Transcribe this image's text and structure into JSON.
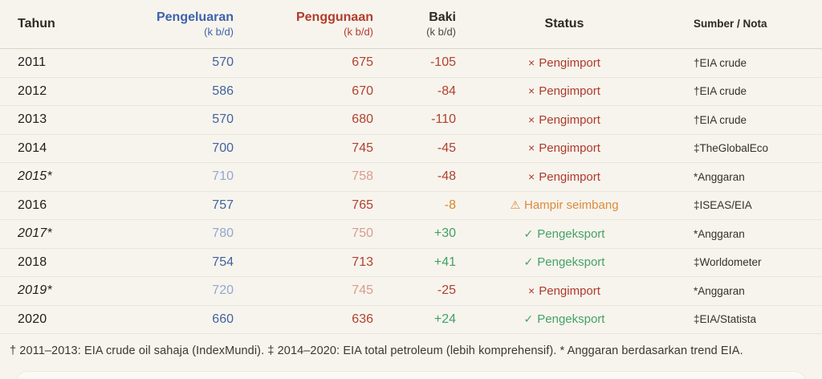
{
  "table": {
    "header": {
      "year": "Tahun",
      "production": "Pengeluaran",
      "production_unit": "(k b/d)",
      "consumption": "Penggunaan",
      "consumption_unit": "(k b/d)",
      "balance": "Baki",
      "balance_unit": "(k b/d)",
      "status": "Status",
      "source": "Sumber / Nota"
    },
    "rows": [
      {
        "year": "2011",
        "production": "570",
        "consumption": "675",
        "balance": "-105",
        "status_icon": "×",
        "status_label": "Pengimport",
        "source": "†EIA crude"
      },
      {
        "year": "2012",
        "production": "586",
        "consumption": "670",
        "balance": "-84",
        "status_icon": "×",
        "status_label": "Pengimport",
        "source": "†EIA crude"
      },
      {
        "year": "2013",
        "production": "570",
        "consumption": "680",
        "balance": "-110",
        "status_icon": "×",
        "status_label": "Pengimport",
        "source": "†EIA crude"
      },
      {
        "year": "2014",
        "production": "700",
        "consumption": "745",
        "balance": "-45",
        "status_icon": "×",
        "status_label": "Pengimport",
        "source": "‡TheGlobalEco"
      },
      {
        "year": "2015*",
        "production": "710",
        "consumption": "758",
        "balance": "-48",
        "status_icon": "×",
        "status_label": "Pengimport",
        "source": "*Anggaran"
      },
      {
        "year": "2016",
        "production": "757",
        "consumption": "765",
        "balance": "-8",
        "status_icon": "⚠",
        "status_label": "Hampir seimbang",
        "source": "‡ISEAS/EIA"
      },
      {
        "year": "2017*",
        "production": "780",
        "consumption": "750",
        "balance": "+30",
        "status_icon": "✓",
        "status_label": "Pengeksport",
        "source": "*Anggaran"
      },
      {
        "year": "2018",
        "production": "754",
        "consumption": "713",
        "balance": "+41",
        "status_icon": "✓",
        "status_label": "Pengeksport",
        "source": "‡Worldometer"
      },
      {
        "year": "2019*",
        "production": "720",
        "consumption": "745",
        "balance": "-25",
        "status_icon": "×",
        "status_label": "Pengimport",
        "source": "*Anggaran"
      },
      {
        "year": "2020",
        "production": "660",
        "consumption": "636",
        "balance": "+24",
        "status_icon": "✓",
        "status_label": "Pengeksport",
        "source": "‡EIA/Statista"
      }
    ]
  },
  "footnote": "† 2011–2013: EIA crude oil sahaja (IndexMundi). ‡ 2014–2020: EIA total petroleum (lebih komprehensif). * Anggaran berdasarkan trend EIA.",
  "colors": {
    "background": "#f7f4ed",
    "production_accent": "#3e62ab",
    "production_estimate": "#93a7d2",
    "consumption_accent": "#b23c2c",
    "consumption_estimate": "#d69d8e",
    "importer_red": "#ad3a2b",
    "exporter_green": "#45a268",
    "balanced_orange": "#dd8a3c",
    "row_divider": "#e9e5db"
  },
  "chart_data": {
    "type": "table",
    "title": "",
    "columns": [
      "Tahun",
      "Pengeluaran (k b/d)",
      "Penggunaan (k b/d)",
      "Baki (k b/d)",
      "Status",
      "Sumber / Nota"
    ],
    "rows": [
      [
        "2011",
        570,
        675,
        -105,
        "Pengimport",
        "†EIA crude"
      ],
      [
        "2012",
        586,
        670,
        -84,
        "Pengimport",
        "†EIA crude"
      ],
      [
        "2013",
        570,
        680,
        -110,
        "Pengimport",
        "†EIA crude"
      ],
      [
        "2014",
        700,
        745,
        -45,
        "Pengimport",
        "‡TheGlobalEco"
      ],
      [
        "2015*",
        710,
        758,
        -48,
        "Pengimport",
        "*Anggaran"
      ],
      [
        "2016",
        757,
        765,
        -8,
        "Hampir seimbang",
        "‡ISEAS/EIA"
      ],
      [
        "2017*",
        780,
        750,
        30,
        "Pengeksport",
        "*Anggaran"
      ],
      [
        "2018",
        754,
        713,
        41,
        "Pengeksport",
        "‡Worldometer"
      ],
      [
        "2019*",
        720,
        745,
        -25,
        "Pengimport",
        "*Anggaran"
      ],
      [
        "2020",
        660,
        636,
        24,
        "Pengeksport",
        "‡EIA/Statista"
      ],
      [
        "footnote",
        null,
        null,
        null,
        null,
        "† 2011–2013: EIA crude oil sahaja (IndexMundi). ‡ 2014–2020: EIA total petroleum (lebih komprehensif). * Anggaran berdasarkan trend EIA."
      ]
    ]
  }
}
